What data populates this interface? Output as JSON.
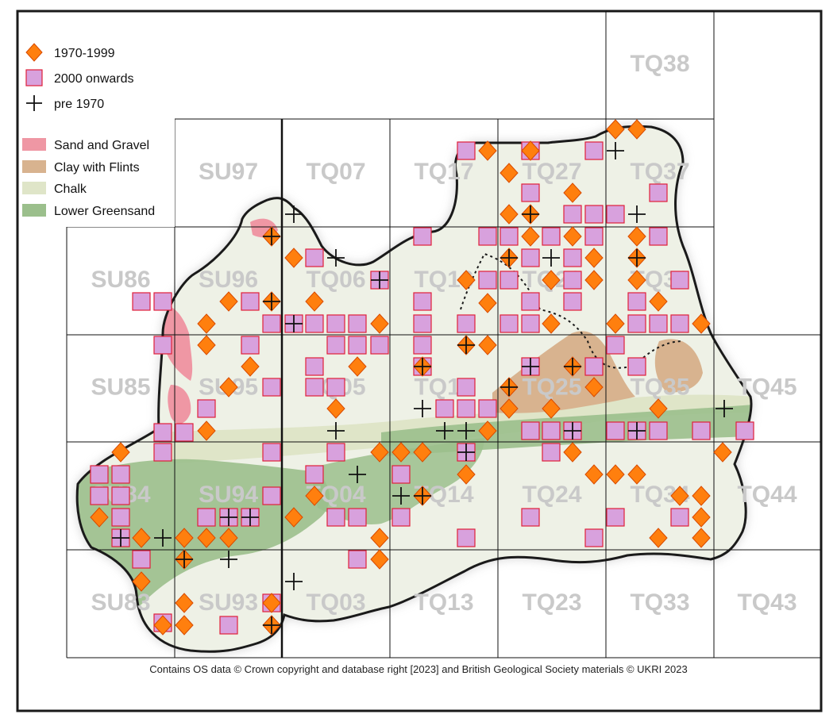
{
  "map": {
    "legend": [
      {
        "key": "1970-1999",
        "label": "1970-1999",
        "symbol": "diamond",
        "color": "#ff7f0e",
        "stroke": "#d84a00"
      },
      {
        "key": "2000 onwards",
        "label": "2000 onwards",
        "symbol": "square",
        "color": "#d8a1dd",
        "stroke": "#e0203a"
      },
      {
        "key": "pre 1970",
        "label": "pre 1970",
        "symbol": "cross",
        "color": "#111111"
      },
      {
        "key": "sand-gravel",
        "label": "Sand and Gravel",
        "symbol": "patch",
        "color": "#ef97a4"
      },
      {
        "key": "clay-flints",
        "label": "Clay with Flints",
        "symbol": "patch",
        "color": "#d8b38f"
      },
      {
        "key": "chalk",
        "label": "Chalk",
        "symbol": "patch",
        "color": "#dfe5c8"
      },
      {
        "key": "lower-greensand",
        "label": "Lower Greensand",
        "symbol": "patch",
        "color": "#9bbf8c"
      }
    ],
    "grid_squares": [
      "TQ38",
      "SU97",
      "TQ07",
      "TQ17",
      "TQ27",
      "TQ37",
      "SU86",
      "SU96",
      "TQ06",
      "TQ16",
      "TQ26",
      "TQ36",
      "SU85",
      "SU95",
      "TQ05",
      "TQ15",
      "TQ25",
      "TQ35",
      "TQ45",
      "SU84",
      "SU94",
      "TQ04",
      "TQ14",
      "TQ24",
      "TQ34",
      "TQ44",
      "SU83",
      "SU93",
      "TQ03",
      "TQ13",
      "TQ23",
      "TQ33",
      "TQ43"
    ],
    "credit": "Contains OS data  © Crown copyright and database right [2023] and British Geological Society materials © UKRI 2023",
    "colors": {
      "surrey_fill": "#eef1e6",
      "surrey_outline": "#1a1a1a",
      "greensand": "#9bbf8c",
      "chalk": "#dfe5c8",
      "clay": "#d8b38f",
      "sand": "#ef97a4",
      "grid_line": "#111111",
      "label": "#c9c9c9"
    },
    "records": {
      "diamonds": [
        [
          0,
          8
        ],
        [
          1,
          8
        ],
        [
          3,
          7
        ],
        [
          4,
          7
        ],
        [
          2,
          6
        ],
        [
          4,
          6
        ],
        [
          1,
          6
        ],
        [
          2,
          5
        ],
        [
          3,
          5
        ],
        [
          5,
          5
        ],
        [
          6,
          5
        ],
        [
          7,
          5
        ],
        [
          6,
          4
        ],
        [
          7,
          4
        ],
        [
          5,
          4
        ],
        [
          2,
          3
        ],
        [
          7,
          3
        ],
        [
          8,
          3
        ],
        [
          9,
          3
        ],
        [
          0,
          3
        ],
        [
          3,
          2
        ],
        [
          5,
          2
        ],
        [
          6,
          2
        ],
        [
          7,
          2
        ],
        [
          8,
          2
        ],
        [
          9,
          2
        ],
        [
          10,
          2
        ],
        [
          11,
          2
        ],
        [
          12,
          2
        ],
        [
          13,
          2
        ],
        [
          14,
          2
        ],
        [
          2,
          1
        ],
        [
          4,
          1
        ],
        [
          5,
          1
        ],
        [
          6,
          1
        ],
        [
          7,
          1
        ],
        [
          8,
          1
        ],
        [
          9,
          1
        ],
        [
          10,
          1
        ],
        [
          11,
          1
        ],
        [
          12,
          1
        ],
        [
          13,
          1
        ],
        [
          1,
          0
        ],
        [
          3,
          0
        ],
        [
          5,
          0
        ],
        [
          6,
          0
        ],
        [
          9,
          0
        ],
        [
          10,
          0
        ],
        [
          11,
          0
        ],
        [
          13,
          0
        ],
        [
          14,
          0
        ],
        [
          8,
          -1
        ],
        [
          12,
          -1
        ]
      ],
      "squares": [
        [
          0,
          7
        ],
        [
          1,
          7
        ],
        [
          2,
          6
        ],
        [
          3,
          6
        ],
        [
          4,
          6
        ],
        [
          5,
          6
        ],
        [
          6,
          6
        ],
        [
          0,
          5
        ],
        [
          1,
          5
        ],
        [
          2,
          5
        ],
        [
          3,
          5
        ],
        [
          4,
          5
        ],
        [
          5,
          5
        ],
        [
          6,
          5
        ],
        [
          1,
          4
        ],
        [
          2,
          4
        ],
        [
          3,
          4
        ],
        [
          4,
          4
        ],
        [
          5,
          4
        ],
        [
          6,
          4
        ],
        [
          1,
          3
        ],
        [
          2,
          3
        ],
        [
          3,
          3
        ],
        [
          4,
          3
        ],
        [
          1,
          2
        ],
        [
          2,
          2
        ],
        [
          4,
          2
        ],
        [
          5,
          2
        ],
        [
          6,
          2
        ],
        [
          7,
          2
        ],
        [
          8,
          2
        ],
        [
          9,
          2
        ],
        [
          10,
          2
        ],
        [
          11,
          2
        ],
        [
          12,
          2
        ],
        [
          1,
          1
        ],
        [
          3,
          1
        ],
        [
          5,
          1
        ],
        [
          7,
          1
        ],
        [
          9,
          1
        ],
        [
          11,
          1
        ],
        [
          13,
          1
        ],
        [
          0,
          0
        ],
        [
          2,
          0
        ],
        [
          4,
          0
        ],
        [
          6,
          0
        ],
        [
          8,
          0
        ],
        [
          10,
          0
        ],
        [
          12,
          0
        ],
        [
          14,
          0
        ]
      ],
      "crosses": [
        [
          2,
          7
        ],
        [
          4,
          6
        ],
        [
          3,
          5
        ],
        [
          5,
          4
        ],
        [
          6,
          3
        ],
        [
          7,
          2
        ],
        [
          8,
          1
        ],
        [
          9,
          0
        ],
        [
          10,
          2
        ],
        [
          11,
          3
        ],
        [
          12,
          4
        ],
        [
          13,
          1
        ]
      ]
    }
  }
}
